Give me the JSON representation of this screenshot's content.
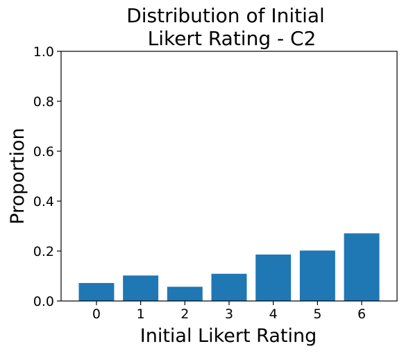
{
  "chart_data": {
    "type": "bar",
    "title_lines": [
      "Distribution of Initial",
      "Likert Rating - C2"
    ],
    "xlabel": "Initial Likert Rating",
    "ylabel": "Proportion",
    "categories": [
      "0",
      "1",
      "2",
      "3",
      "4",
      "5",
      "6"
    ],
    "values": [
      0.072,
      0.102,
      0.057,
      0.109,
      0.186,
      0.202,
      0.271
    ],
    "ylim": [
      0,
      1.0
    ],
    "yticks": [
      0.0,
      0.2,
      0.4,
      0.6,
      0.8,
      1.0
    ],
    "ytick_labels": [
      "0.0",
      "0.2",
      "0.4",
      "0.6",
      "0.8",
      "1.0"
    ],
    "bar_color": "#1f77b4",
    "grid": false,
    "legend": "none"
  }
}
